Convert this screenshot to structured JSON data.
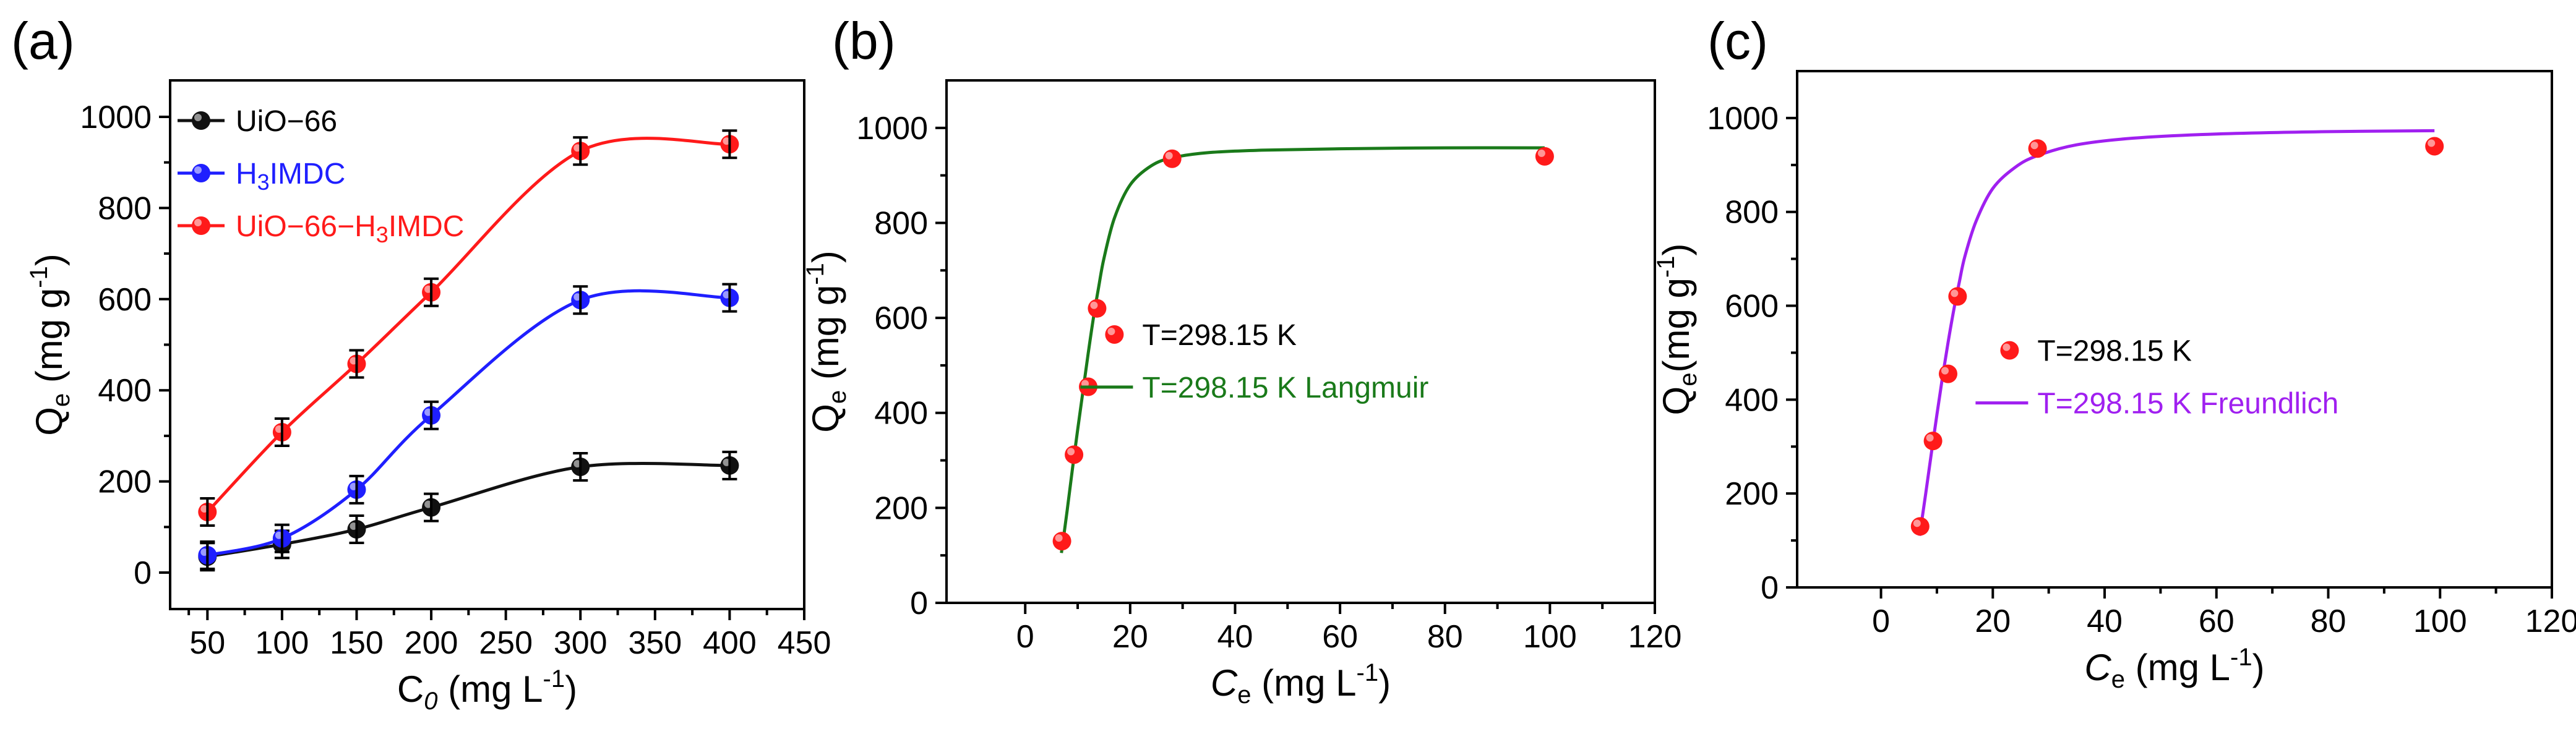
{
  "colors": {
    "black": "#111111",
    "blue": "#1f1fff",
    "red": "#ff1a1a",
    "green": "#1a7a1a",
    "purple": "#a020f0"
  },
  "chart_data": [
    {
      "panel": "(a)",
      "type": "line",
      "xlabel": {
        "main": "C",
        "sub": "0",
        "unit": " (mg L",
        "sup": "-1",
        "close": ")"
      },
      "ylabel": {
        "main": "Q",
        "sub": "e",
        "unit": " (mg g",
        "sup": "-1",
        "close": ")"
      },
      "xlim": [
        25,
        450
      ],
      "ylim": [
        -80,
        1080
      ],
      "xticks": [
        50,
        100,
        150,
        200,
        250,
        300,
        350,
        400,
        450
      ],
      "yticks": [
        0,
        200,
        400,
        600,
        800,
        1000
      ],
      "x": [
        50,
        100,
        150,
        200,
        300,
        400
      ],
      "series": [
        {
          "name": "UiO−66",
          "color_key": "black",
          "values": [
            35,
            62,
            95,
            143,
            232,
            235
          ]
        },
        {
          "name": "H",
          "name_sub": "3",
          "name_rest": "IMDC",
          "color_key": "blue",
          "values": [
            38,
            75,
            182,
            345,
            598,
            603
          ]
        },
        {
          "name": "UiO−66−H",
          "name_sub": "3",
          "name_rest": "IMDC",
          "color_key": "red",
          "values": [
            133,
            308,
            458,
            615,
            925,
            940
          ]
        }
      ],
      "legend": "top-left"
    },
    {
      "panel": "(b)",
      "type": "scatter",
      "xlabel": {
        "main": "C",
        "sub": "e",
        "unit": " (mg L",
        "sup": "-1",
        "close": ")"
      },
      "ylabel": {
        "main": "Q",
        "sub": "e",
        "unit": " (mg g",
        "sup": "-1",
        "close": ")"
      },
      "xlim": [
        -15,
        120
      ],
      "ylim": [
        0,
        1100
      ],
      "xticks": [
        0,
        20,
        40,
        60,
        80,
        100,
        120
      ],
      "yticks": [
        0,
        200,
        400,
        600,
        800,
        1000
      ],
      "points": {
        "name": "T=298.15 K",
        "x": [
          7,
          9.3,
          12,
          13.7,
          28,
          99
        ],
        "y": [
          130,
          312,
          455,
          620,
          935,
          940
        ]
      },
      "fit": {
        "name": "T=298.15 K Langmuir",
        "color_key": "green",
        "x": [
          6.9,
          8,
          9,
          10,
          11,
          12,
          13,
          14,
          15,
          17,
          20,
          24,
          28,
          35,
          45,
          60,
          80,
          99
        ],
        "y": [
          105,
          195,
          282,
          365,
          445,
          525,
          600,
          665,
          725,
          810,
          880,
          920,
          937,
          948,
          953,
          956,
          958,
          958
        ]
      },
      "legend": "center-right"
    },
    {
      "panel": "(c)",
      "type": "scatter",
      "xlabel": {
        "main": "C",
        "sub": "e",
        "unit": " (mg L",
        "sup": "-1",
        "close": ")"
      },
      "ylabel": {
        "main": "Q",
        "sub": "e",
        "unit": "(mg g",
        "sup": "-1",
        "close": ")"
      },
      "xlim": [
        -15,
        120
      ],
      "ylim": [
        0,
        1100
      ],
      "xticks": [
        0,
        20,
        40,
        60,
        80,
        100,
        120
      ],
      "yticks": [
        0,
        200,
        400,
        600,
        800,
        1000
      ],
      "points": {
        "name": "T=298.15 K",
        "x": [
          7,
          9.3,
          12,
          13.7,
          28,
          99
        ],
        "y": [
          130,
          312,
          455,
          620,
          935,
          940
        ]
      },
      "fit": {
        "name": "T=298.15 K Freundlich",
        "color_key": "purple",
        "x": [
          6.9,
          8,
          9,
          10,
          11,
          12,
          13,
          14,
          15,
          17,
          20,
          24,
          28,
          35,
          45,
          60,
          80,
          99
        ],
        "y": [
          110,
          200,
          285,
          368,
          448,
          522,
          590,
          650,
          705,
          780,
          850,
          895,
          920,
          943,
          957,
          966,
          971,
          973
        ]
      },
      "legend": "center-right"
    }
  ]
}
